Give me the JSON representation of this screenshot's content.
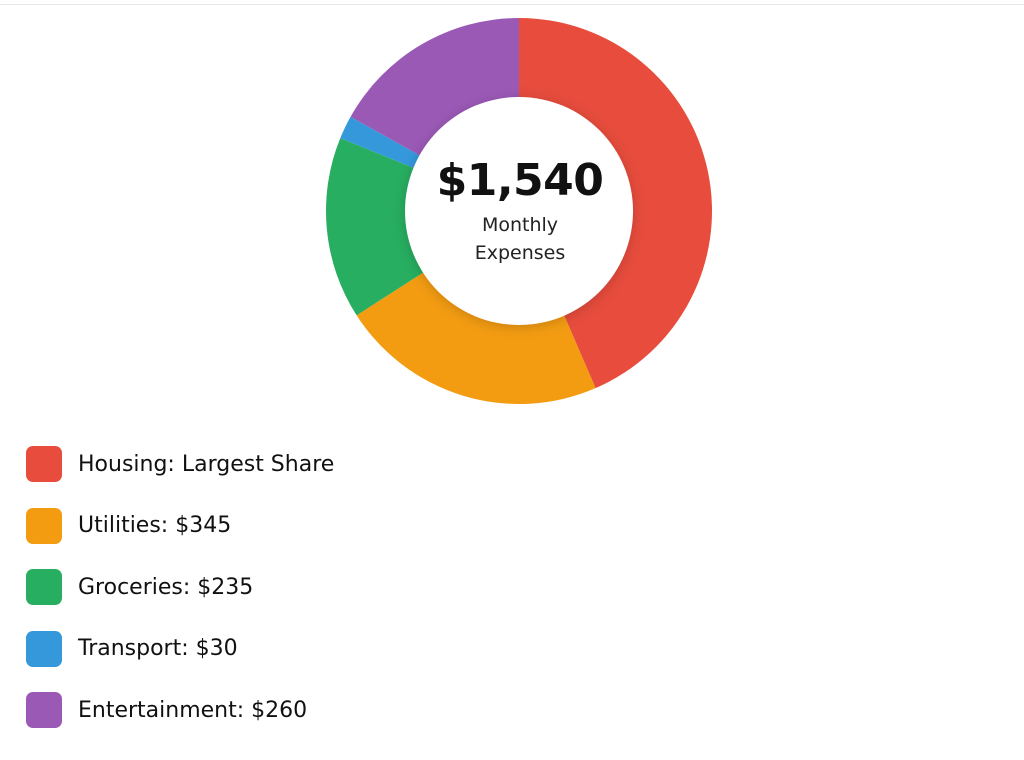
{
  "chart_data": {
    "type": "pie",
    "variant": "donut",
    "center": {
      "total": "$1,540",
      "caption": "Monthly Expenses"
    },
    "total_value": 1540,
    "series": [
      {
        "label": "Housing",
        "legend_text": "Housing: Largest Share",
        "value": 670,
        "color": "#e74c3c"
      },
      {
        "label": "Utilities",
        "legend_text": "Utilities: $345",
        "value": 345,
        "color": "#f39c12"
      },
      {
        "label": "Groceries",
        "legend_text": "Groceries: $235",
        "value": 235,
        "color": "#27ae60"
      },
      {
        "label": "Transport",
        "legend_text": "Transport: $30",
        "value": 30,
        "color": "#3498db"
      },
      {
        "label": "Entertainment",
        "legend_text": "Entertainment: $260",
        "value": 260,
        "color": "#9b59b6"
      }
    ],
    "legend_placement": "bottom-left"
  }
}
